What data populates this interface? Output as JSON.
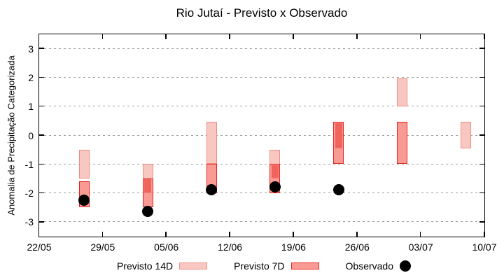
{
  "chart_data": {
    "type": "bar",
    "subtype": "range-bars-with-scatter",
    "title": "Rio Jutaí - Previsto x Observado",
    "ylabel": "Anomalia de Precipitação Categorizada",
    "xlabel": "",
    "ylim": [
      -3.5,
      3.5
    ],
    "yticks": [
      3,
      2,
      1,
      0,
      -1,
      -2,
      -3
    ],
    "grid": "horizontal dashed gridlines at integer y values",
    "x_axis": {
      "tick_labels": [
        "22/05",
        "29/05",
        "05/06",
        "12/06",
        "19/06",
        "26/06",
        "03/07",
        "10/07"
      ],
      "tick_days": [
        0,
        7,
        14,
        21,
        28,
        35,
        42,
        49
      ],
      "span_days": 49
    },
    "series": [
      {
        "name": "Previsto 14D",
        "type": "range-bar"
      },
      {
        "name": "Previsto 7D",
        "type": "range-bar"
      },
      {
        "name": "Observado",
        "type": "point"
      }
    ],
    "groups": [
      {
        "day_offset": 5,
        "previsto_14d": [
          -1.5,
          -0.5
        ],
        "previsto_7d": [
          -2.5,
          -1.6
        ],
        "observado": -2.25
      },
      {
        "day_offset": 12,
        "previsto_14d": [
          -2.0,
          -1.0
        ],
        "previsto_7d": [
          -2.5,
          -1.5
        ],
        "observado": -2.65
      },
      {
        "day_offset": 19,
        "previsto_14d": [
          -1.0,
          0.45
        ],
        "previsto_7d": [
          -2.0,
          -1.0
        ],
        "observado": -1.9
      },
      {
        "day_offset": 26,
        "previsto_14d": [
          -1.5,
          -0.5
        ],
        "previsto_7d": [
          -2.0,
          -1.0
        ],
        "observado": -1.8
      },
      {
        "day_offset": 33,
        "previsto_14d": [
          -0.45,
          0.45
        ],
        "previsto_7d": [
          -1.0,
          0.45
        ],
        "observado": -1.9
      },
      {
        "day_offset": 40,
        "previsto_14d": [
          1.0,
          1.95
        ],
        "previsto_7d": [
          -1.0,
          0.45
        ],
        "observado": null
      },
      {
        "day_offset": 47,
        "previsto_14d": [
          -0.45,
          0.45
        ],
        "previsto_7d": null,
        "observado": null
      }
    ],
    "legend": [
      {
        "label": "Previsto 14D",
        "swatch": "box-14d"
      },
      {
        "label": "Previsto 7D",
        "swatch": "box-7d"
      },
      {
        "label": "Observado",
        "swatch": "dot"
      }
    ],
    "legend_position": "bottom",
    "colors": {
      "previsto_14d_fill": "#f9c7c1",
      "previsto_14d_border": "#ef8d83",
      "previsto_7d_fill": "#f99b94",
      "previsto_7d_border": "#e6251e",
      "overlap_fill": "#ef655e",
      "overlap_inner_edge": "#ec8379",
      "observado": "#000000",
      "grid": "#9c9c9c",
      "frame": "#000000"
    }
  }
}
